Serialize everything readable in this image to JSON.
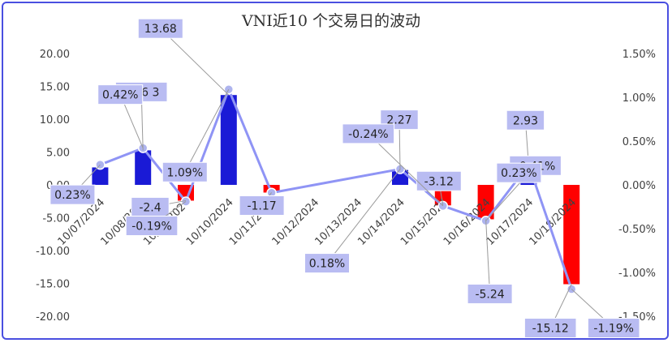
{
  "chart_data": {
    "type": "bar",
    "title": "VNI近10 个交易日的波动",
    "categories": [
      "10/07/2024",
      "10/08/2024",
      "10/09/2024",
      "10/10/2024",
      "10/11/2024",
      "10/12/2024",
      "10/13/2024",
      "10/14/2024",
      "10/15/2024",
      "10/16/2024",
      "10/17/2024",
      "10/18/2024"
    ],
    "bar_series": {
      "values": [
        2.66,
        5.26,
        -2.4,
        13.68,
        -1.17,
        null,
        null,
        2.27,
        -3.12,
        -5.24,
        2.93,
        -15.12
      ],
      "labels": [
        "",
        "5.26 3",
        "-2.4",
        "13.68",
        "-1.17",
        "",
        "",
        "2.27",
        "-3.12",
        "-5.24",
        "2.93",
        "-15.12"
      ],
      "positive_color": "#1a1ad6",
      "negative_color": "#ff0000"
    },
    "line_series": {
      "values": [
        0.23,
        0.42,
        -0.19,
        1.09,
        -0.09,
        null,
        null,
        0.18,
        -0.24,
        -0.41,
        0.23,
        -1.19
      ],
      "labels": [
        "0.23%",
        "0.42%",
        "-0.19%",
        "1.09%",
        "",
        "",
        "",
        "0.18%",
        "-0.24%",
        "-0.41%",
        "0.23%",
        "-1.19%"
      ],
      "color": "#8f94f5",
      "marker_color": "#aeb4ee"
    },
    "y_left": {
      "ylim": [
        -20,
        20
      ],
      "ticks": [
        "20.00",
        "15.00",
        "10.00",
        "5.00",
        "0.00",
        "-5.00",
        "-10.00",
        "-15.00",
        "-20.00"
      ]
    },
    "y_right": {
      "ylim": [
        -1.5,
        1.5
      ],
      "ticks": [
        "1.50%",
        "1.00%",
        "0.50%",
        "0.00%",
        "-0.50%",
        "-1.00%",
        "-1.50%"
      ]
    },
    "grid": false
  }
}
